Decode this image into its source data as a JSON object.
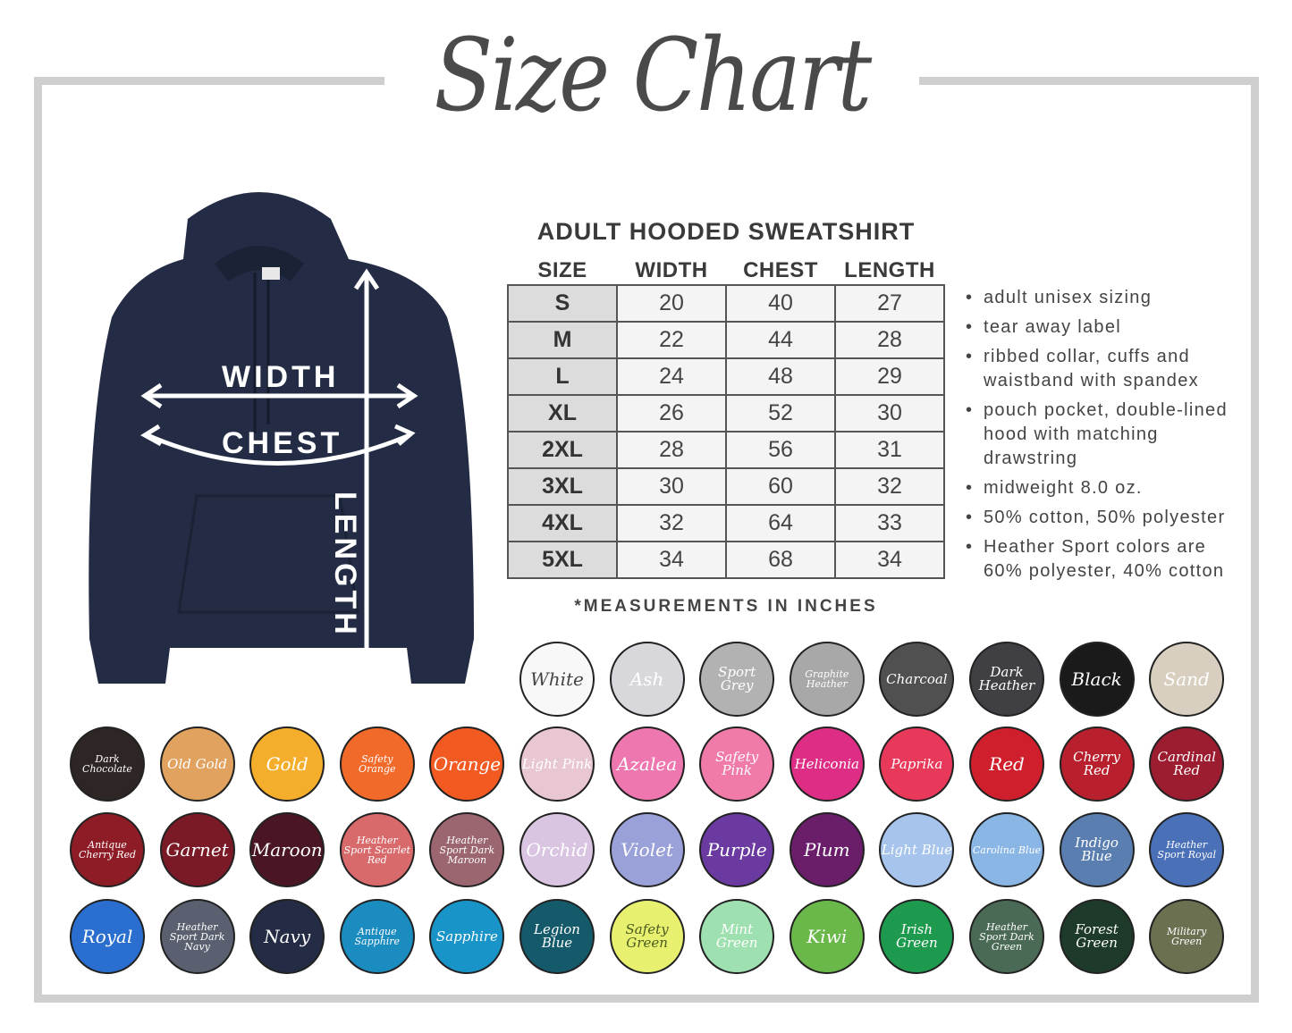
{
  "title": "Size Chart",
  "table": {
    "title": "ADULT HOODED SWEATSHIRT",
    "headers": [
      "SIZE",
      "WIDTH",
      "CHEST",
      "LENGTH"
    ],
    "rows": [
      [
        "S",
        "20",
        "40",
        "27"
      ],
      [
        "M",
        "22",
        "44",
        "28"
      ],
      [
        "L",
        "24",
        "48",
        "29"
      ],
      [
        "XL",
        "26",
        "52",
        "30"
      ],
      [
        "2XL",
        "28",
        "56",
        "31"
      ],
      [
        "3XL",
        "30",
        "60",
        "32"
      ],
      [
        "4XL",
        "32",
        "64",
        "33"
      ],
      [
        "5XL",
        "34",
        "68",
        "34"
      ]
    ],
    "note": "*MEASUREMENTS IN INCHES"
  },
  "hoodie": {
    "color": "#232c44",
    "labels": {
      "width": "WIDTH",
      "chest": "CHEST",
      "length": "LENGTH"
    }
  },
  "features": [
    "adult unisex sizing",
    "tear away label",
    "ribbed collar, cuffs and waistband with spandex",
    "pouch pocket, double-lined hood with matching drawstring",
    "midweight 8.0 oz.",
    "50% cotton, 50% polyester",
    "Heather Sport colors are 60% polyester, 40% cotton"
  ],
  "colors": [
    [
      {
        "name": "White",
        "color": "#f8f8f8",
        "text": "#444"
      },
      {
        "name": "Ash",
        "color": "#d8d8dc"
      },
      {
        "name": "Sport Grey",
        "color": "#b2b2b2"
      },
      {
        "name": "Graphite Heather",
        "color": "#a8a8a8"
      },
      {
        "name": "Charcoal",
        "color": "#505050"
      },
      {
        "name": "Dark Heather",
        "color": "#404044"
      },
      {
        "name": "Black",
        "color": "#1a1a1a"
      },
      {
        "name": "Sand",
        "color": "#d8cfc0"
      }
    ],
    [
      {
        "name": "Dark Chocolate",
        "color": "#2e2624"
      },
      {
        "name": "Old Gold",
        "color": "#e0a25e"
      },
      {
        "name": "Gold",
        "color": "#f5ae2c"
      },
      {
        "name": "Safety Orange",
        "color": "#f26a2a"
      },
      {
        "name": "Orange",
        "color": "#f25a22"
      },
      {
        "name": "Light Pink",
        "color": "#e8c6d2"
      },
      {
        "name": "Azalea",
        "color": "#ef77b0"
      },
      {
        "name": "Safety Pink",
        "color": "#f07aa8"
      },
      {
        "name": "Heliconia",
        "color": "#de2d84"
      },
      {
        "name": "Paprika",
        "color": "#e8395a"
      },
      {
        "name": "Red",
        "color": "#d01f2c"
      },
      {
        "name": "Cherry Red",
        "color": "#b8202e"
      },
      {
        "name": "Cardinal Red",
        "color": "#9c1c30"
      }
    ],
    [
      {
        "name": "Antique Cherry Red",
        "color": "#8e1c26"
      },
      {
        "name": "Garnet",
        "color": "#7a1a26"
      },
      {
        "name": "Maroon",
        "color": "#4a1624"
      },
      {
        "name": "Heather Sport Scarlet Red",
        "color": "#d86a6c"
      },
      {
        "name": "Heather Sport Dark Maroon",
        "color": "#9c6670"
      },
      {
        "name": "Orchid",
        "color": "#d9c5e2"
      },
      {
        "name": "Violet",
        "color": "#9aa0d8"
      },
      {
        "name": "Purple",
        "color": "#6a3aa0"
      },
      {
        "name": "Plum",
        "color": "#6a1e6a"
      },
      {
        "name": "Light Blue",
        "color": "#a6c4ec"
      },
      {
        "name": "Carolina Blue",
        "color": "#8ab6e6"
      },
      {
        "name": "Indigo Blue",
        "color": "#5b7eb0"
      },
      {
        "name": "Heather Sport Royal",
        "color": "#4a70b8"
      }
    ],
    [
      {
        "name": "Royal",
        "color": "#2a6ed0"
      },
      {
        "name": "Heather Sport Dark Navy",
        "color": "#5a6070"
      },
      {
        "name": "Navy",
        "color": "#232c44"
      },
      {
        "name": "Antique Sapphire",
        "color": "#1a8cc0"
      },
      {
        "name": "Sapphire",
        "color": "#1894c8"
      },
      {
        "name": "Legion Blue",
        "color": "#145a6a"
      },
      {
        "name": "Safety Green",
        "color": "#e8f070",
        "text": "#4a5a20"
      },
      {
        "name": "Mint Green",
        "color": "#9ee0b0"
      },
      {
        "name": "Kiwi",
        "color": "#6ab84a"
      },
      {
        "name": "Irish Green",
        "color": "#1e9a4e"
      },
      {
        "name": "Heather Sport Dark Green",
        "color": "#4a6a56"
      },
      {
        "name": "Forest Green",
        "color": "#1e3a2a"
      },
      {
        "name": "Military Green",
        "color": "#6a7050"
      }
    ]
  ]
}
